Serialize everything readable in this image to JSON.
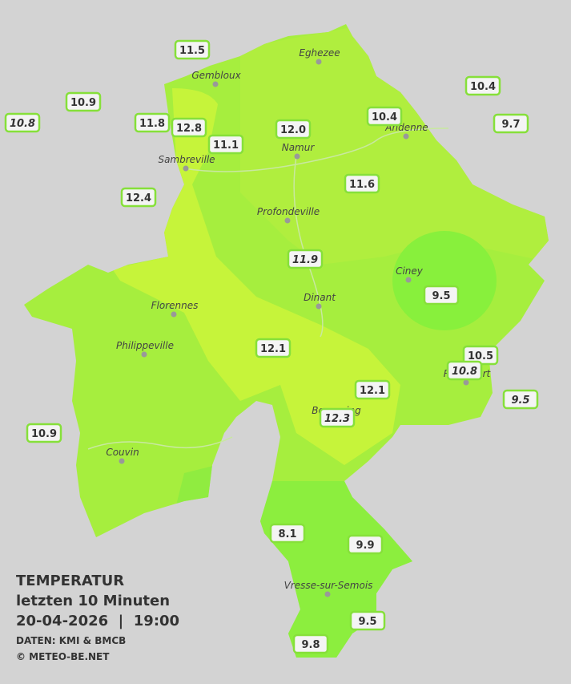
{
  "legend": {
    "title": "TEMPERATUR",
    "period": "letzten 10 Minuten",
    "datetime": "20-04-2026  |  19:00",
    "source": "DATEN: KMI & BMCB",
    "copyright": "© METEO-BE.NET"
  },
  "cities": [
    "Eghezee",
    "Gembloux",
    "Andenne",
    "Namur",
    "Sambreville",
    "Profondeville",
    "Ciney",
    "Florennes",
    "Dinant",
    "Philippeville",
    "Rochefort",
    "Beauraing",
    "Couvin",
    "Vresse-sur-Semois"
  ],
  "stations": [
    {
      "value": "11.5"
    },
    {
      "value": "10.9"
    },
    {
      "value": "10.8",
      "style": "italic"
    },
    {
      "value": "11.8"
    },
    {
      "value": "12.8"
    },
    {
      "value": "11.1"
    },
    {
      "value": "12.0"
    },
    {
      "value": "10.4"
    },
    {
      "value": "10.4"
    },
    {
      "value": "9.7"
    },
    {
      "value": "11.6"
    },
    {
      "value": "12.4"
    },
    {
      "value": "11.9",
      "style": "italic"
    },
    {
      "value": "9.5"
    },
    {
      "value": "12.1"
    },
    {
      "value": "10.5"
    },
    {
      "value": "10.8",
      "style": "italic"
    },
    {
      "value": "12.1"
    },
    {
      "value": "9.5",
      "style": "italic"
    },
    {
      "value": "12.3",
      "style": "italic"
    },
    {
      "value": "10.9"
    },
    {
      "value": "8.1"
    },
    {
      "value": "9.9"
    },
    {
      "value": "9.5"
    },
    {
      "value": "9.8"
    }
  ]
}
